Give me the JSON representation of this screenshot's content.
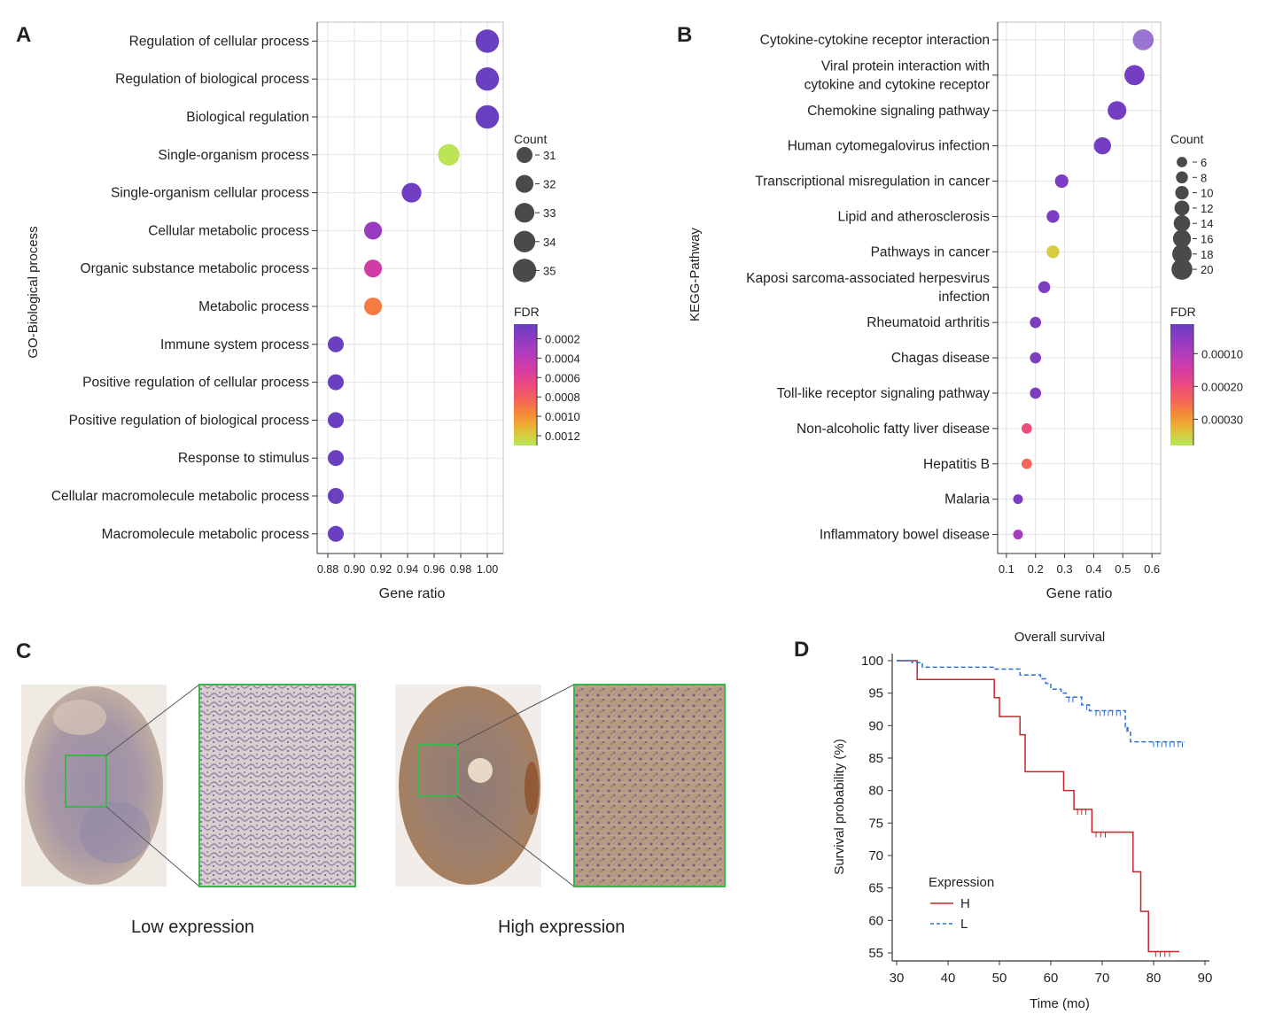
{
  "chart_data": [
    {
      "panel": "A",
      "type": "scatter",
      "style": "bubble",
      "ylabel": "GO-Biological process",
      "xlabel": "Gene ratio",
      "xlim": [
        0.872,
        1.012
      ],
      "xticks": [
        0.88,
        0.9,
        0.92,
        0.94,
        0.96,
        0.98,
        1.0
      ],
      "xtick_labels": [
        "0.88",
        "0.90",
        "0.92",
        "0.94",
        "0.96",
        "0.98",
        "1.00"
      ],
      "grid": true,
      "categories": [
        "Regulation of cellular process",
        "Regulation of biological process",
        "Biological regulation",
        "Single-organism process",
        "Single-organism cellular process",
        "Cellular metabolic process",
        "Organic substance metabolic process",
        "Metabolic process",
        "Immune system process",
        "Positive regulation of cellular process",
        "Positive regulation of biological process",
        "Response to stimulus",
        "Cellular macromolecule metabolic process",
        "Macromolecule metabolic process"
      ],
      "gene_ratio": [
        1.0,
        1.0,
        1.0,
        0.971,
        0.943,
        0.914,
        0.914,
        0.914,
        0.886,
        0.886,
        0.886,
        0.886,
        0.886,
        0.886
      ],
      "count": [
        35,
        35,
        35,
        34,
        33,
        32,
        32,
        32,
        31,
        31,
        31,
        31,
        31,
        31
      ],
      "fdr": [
        5e-05,
        5e-05,
        5e-05,
        0.00128,
        8e-05,
        0.00022,
        0.00045,
        0.00085,
        5e-05,
        5e-05,
        5e-05,
        5e-05,
        5e-05,
        5e-05
      ],
      "size_legend": {
        "title": "Count",
        "values": [
          31,
          32,
          33,
          34,
          35
        ],
        "labels": [
          "31",
          "32",
          "33",
          "34",
          "35"
        ]
      },
      "color_legend": {
        "title": "FDR",
        "range": [
          5e-05,
          0.0013
        ],
        "ticks": [
          0.0002,
          0.0004,
          0.0006,
          0.0008,
          0.001,
          0.0012
        ],
        "labels": [
          "0.0002",
          "0.0004",
          "0.0006",
          "0.0008",
          "0.0010",
          "0.0012"
        ]
      }
    },
    {
      "panel": "B",
      "type": "scatter",
      "style": "bubble",
      "ylabel": "KEGG-Pathway",
      "xlabel": "Gene ratio",
      "xlim": [
        0.07,
        0.63
      ],
      "xticks": [
        0.1,
        0.2,
        0.3,
        0.4,
        0.5,
        0.6
      ],
      "xtick_labels": [
        "0.1",
        "0.2",
        "0.3",
        "0.4",
        "0.5",
        "0.6"
      ],
      "grid": true,
      "categories": [
        [
          "Cytokine-cytokine receptor interaction"
        ],
        [
          "Viral protein interaction with",
          "cytokine and cytokine receptor"
        ],
        [
          "Chemokine signaling pathway"
        ],
        [
          "Human cytomegalovirus infection"
        ],
        [
          "Transcriptional misregulation in cancer"
        ],
        [
          "Lipid and atherosclerosis"
        ],
        [
          "Pathways in cancer"
        ],
        [
          "Kaposi sarcoma-associated herpesvirus",
          "infection"
        ],
        [
          "Rheumatoid arthritis"
        ],
        [
          "Chagas disease"
        ],
        [
          "Toll-like receptor signaling pathway"
        ],
        [
          "Non-alcoholic fatty liver disease"
        ],
        [
          "Hepatitis B"
        ],
        [
          "Malaria"
        ],
        [
          "Inflammatory bowel disease"
        ]
      ],
      "gene_ratio": [
        0.57,
        0.54,
        0.48,
        0.43,
        0.29,
        0.26,
        0.26,
        0.23,
        0.2,
        0.2,
        0.2,
        0.17,
        0.17,
        0.14,
        0.14
      ],
      "count": [
        20,
        19,
        17,
        15,
        10,
        9,
        9,
        8,
        7,
        7,
        7,
        6,
        6,
        5,
        5
      ],
      "fdr": [
        2e-05,
        2e-05,
        2e-05,
        2e-05,
        3e-05,
        3e-05,
        0.00034,
        3e-05,
        3e-05,
        3e-05,
        3e-05,
        0.00018,
        0.00022,
        3e-05,
        8e-05
      ],
      "size_legend": {
        "title": "Count",
        "values": [
          6,
          8,
          10,
          12,
          14,
          16,
          18,
          20
        ],
        "labels": [
          "6",
          "8",
          "10",
          "12",
          "14",
          "16",
          "18",
          "20"
        ]
      },
      "color_legend": {
        "title": "FDR",
        "range": [
          1e-05,
          0.00038
        ],
        "ticks": [
          0.0001,
          0.0002,
          0.0003
        ],
        "labels": [
          "0.00010",
          "0.00020",
          "0.00030"
        ]
      }
    },
    {
      "panel": "D",
      "type": "line",
      "style": "step",
      "title": "Overall survival",
      "xlabel": "Time (mo)",
      "ylabel": "Survival probability (%)",
      "xlim": [
        29,
        91
      ],
      "ylim": [
        54,
        101
      ],
      "xticks": [
        30,
        40,
        50,
        60,
        70,
        80,
        90
      ],
      "yticks": [
        55,
        60,
        65,
        70,
        75,
        80,
        85,
        90,
        95,
        100
      ],
      "legend": {
        "title": "Expression",
        "entries": [
          "H",
          "L"
        ]
      },
      "series": [
        {
          "name": "H",
          "color": "#c0282d",
          "dash": "solid",
          "steps": [
            [
              30,
              100
            ],
            [
              34,
              97.1
            ],
            [
              49,
              94.3
            ],
            [
              50,
              91.4
            ],
            [
              54,
              88.6
            ],
            [
              55,
              82.9
            ],
            [
              62.5,
              80
            ],
            [
              64.5,
              77.1
            ],
            [
              68,
              73.6
            ],
            [
              76,
              67.5
            ],
            [
              77.5,
              61.4
            ],
            [
              79,
              55.2
            ],
            [
              85,
              55.2
            ]
          ],
          "censored": [
            65.2,
            66,
            66.8,
            68.8,
            69.7,
            70.6,
            80.4,
            81.3,
            82.2,
            83.1
          ]
        },
        {
          "name": "L",
          "color": "#2b6fd6",
          "dash": "dashed",
          "steps": [
            [
              30,
              100
            ],
            [
              33,
              99.7
            ],
            [
              35,
              99
            ],
            [
              49,
              98.7
            ],
            [
              54,
              97.8
            ],
            [
              58,
              97.2
            ],
            [
              59,
              96.5
            ],
            [
              60,
              95.6
            ],
            [
              62,
              95
            ],
            [
              63,
              94.4
            ],
            [
              66,
              93.2
            ],
            [
              67.5,
              92.3
            ],
            [
              74.5,
              89.8
            ],
            [
              75,
              89
            ],
            [
              75.5,
              87.5
            ],
            [
              86,
              87.5
            ]
          ],
          "censored": [
            63.5,
            64.3,
            67,
            68.8,
            69.6,
            70.4,
            71.2,
            72,
            72.8,
            73.5,
            74.8,
            80,
            80.8,
            81.6,
            82.4,
            83.2,
            84,
            84.8,
            85.6
          ]
        }
      ]
    }
  ],
  "panels": {
    "a_label": "A",
    "b_label": "B",
    "c_label": "C",
    "d_label": "D"
  },
  "tissue": {
    "low_caption": "Low expression",
    "high_caption": "High expression",
    "box_color": "#3db54a"
  },
  "colormap": [
    "#6a3fc0",
    "#8e3bc4",
    "#b43cbc",
    "#d63ca3",
    "#ec4a7f",
    "#f4625a",
    "#f6843c",
    "#f0a832",
    "#d6cc3e",
    "#b6e85a"
  ]
}
